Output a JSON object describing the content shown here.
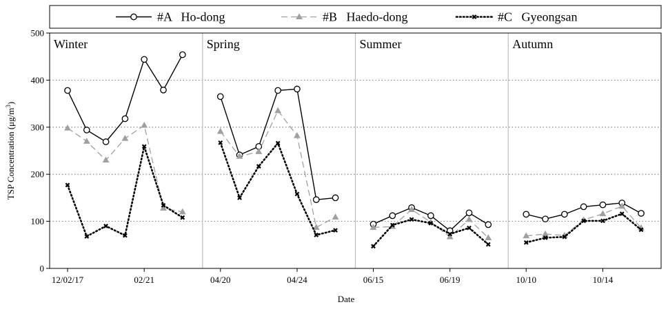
{
  "chart_data": {
    "type": "line",
    "xlabel": "Date",
    "ylabel": "TSP Concentration (μg/m³)",
    "ylabel_text": "TSP Concentration (μg/m",
    "ylabel_sup": "3",
    "ylabel_end": ")",
    "ylim": [
      0,
      500
    ],
    "yticks": [
      0,
      100,
      200,
      300,
      400,
      500
    ],
    "grid_values": [
      100,
      200,
      300,
      400
    ],
    "legend_position": "top",
    "seasons": [
      {
        "name": "Winter",
        "date_labels": [
          {
            "index": 0,
            "label": "12/02/17"
          },
          {
            "index": 4,
            "label": "02/21"
          }
        ]
      },
      {
        "name": "Spring",
        "date_labels": [
          {
            "index": 0,
            "label": "04/20"
          },
          {
            "index": 4,
            "label": "04/24"
          }
        ]
      },
      {
        "name": "Summer",
        "date_labels": [
          {
            "index": 0,
            "label": "06/15"
          },
          {
            "index": 4,
            "label": "06/19"
          }
        ]
      },
      {
        "name": "Autumn",
        "date_labels": [
          {
            "index": 0,
            "label": "10/10"
          },
          {
            "index": 4,
            "label": "10/14"
          }
        ]
      }
    ],
    "series": [
      {
        "name": "#A   Ho-dong",
        "color": "#000000",
        "marker": "circle",
        "line": "solid",
        "values": [
          [
            378,
            294,
            269,
            318,
            444,
            379,
            454
          ],
          [
            365,
            241,
            259,
            378,
            381,
            146,
            150
          ],
          [
            94,
            112,
            129,
            112,
            80,
            118,
            93
          ],
          [
            115,
            105,
            115,
            131,
            135,
            139,
            117
          ]
        ]
      },
      {
        "name": "#B   Haedo-dong",
        "color": "#a0a0a0",
        "marker": "triangle",
        "line": "dashed",
        "values": [
          [
            298,
            270,
            230,
            276,
            304,
            128,
            120
          ],
          [
            291,
            238,
            248,
            335,
            282,
            87,
            109
          ],
          [
            87,
            89,
            125,
            98,
            67,
            104,
            65
          ],
          [
            69,
            73,
            70,
            103,
            116,
            132,
            86
          ]
        ]
      },
      {
        "name": "#C   Gyeongsan",
        "color": "#000000",
        "marker": "x",
        "line": "dotted",
        "values": [
          [
            177,
            68,
            90,
            70,
            259,
            134,
            108
          ],
          [
            267,
            150,
            217,
            266,
            158,
            71,
            81
          ],
          [
            47,
            92,
            104,
            96,
            73,
            86,
            51
          ],
          [
            55,
            65,
            67,
            101,
            101,
            116,
            82
          ]
        ]
      }
    ]
  }
}
